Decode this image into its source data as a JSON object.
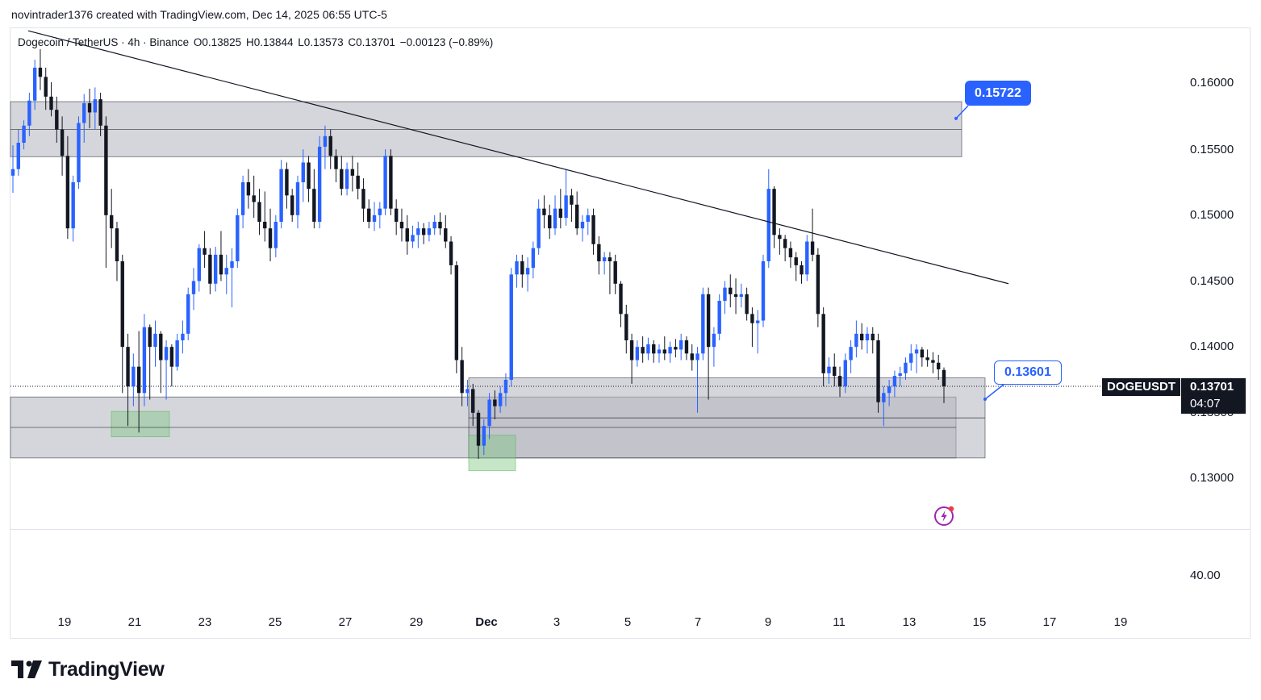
{
  "credit": "novintrader1376 created with TradingView.com, Dec 14, 2025 06:55 UTC-5",
  "legend": {
    "symbol": "Dogecoin / TetherUS · 4h · Binance",
    "open": "O0.13825",
    "high": "H0.13844",
    "low": "L0.13573",
    "close": "C0.13701",
    "change": "−0.00123 (−0.89%)"
  },
  "y_ticks": [
    "0.16000",
    "0.15500",
    "0.15000",
    "0.14500",
    "0.14000",
    "0.13500",
    "0.13000"
  ],
  "indicator_tick": "40.00",
  "x_ticks": [
    "19",
    "21",
    "23",
    "25",
    "27",
    "29",
    "Dec",
    "3",
    "5",
    "7",
    "9",
    "11",
    "13",
    "15",
    "17",
    "19"
  ],
  "callouts": {
    "upper": "0.15722",
    "lower": "0.13601"
  },
  "ticker": "DOGEUSDT",
  "last_price": "0.13701",
  "countdown": "04:07",
  "brand": "TradingView",
  "colors": {
    "up": "#2962ff",
    "down": "#131722",
    "zone": "#d1d4dc",
    "demand": "#a5d6a7"
  },
  "chart_data": {
    "type": "candlestick",
    "symbol": "DOGEUSDT",
    "interval": "4h",
    "exchange": "Binance",
    "ylim": [
      0.1265,
      0.1642
    ],
    "x_range_days": [
      "Nov 18",
      "Dec 20"
    ],
    "last_candle": {
      "open": 0.13825,
      "high": 0.13844,
      "low": 0.13573,
      "close": 0.13701
    },
    "key_levels": [
      0.15722,
      0.13601
    ],
    "zones": [
      {
        "name": "supply",
        "from": "Nov 18",
        "to": "Dec 14",
        "low": 0.15444,
        "high": 0.15862
      },
      {
        "name": "demand-left",
        "from": "Nov 18",
        "to": "Dec 15",
        "low": 0.13157,
        "high": 0.1362
      },
      {
        "name": "demand-right",
        "from": "Nov 30",
        "to": "Dec 15",
        "low": 0.13157,
        "high": 0.13765
      },
      {
        "name": "pivot-low-1",
        "from": "Nov 20",
        "to": "Nov 22",
        "low": 0.13318,
        "high": 0.1351
      },
      {
        "name": "pivot-low-2",
        "from": "Nov 30",
        "to": "Dec 1",
        "low": 0.1306,
        "high": 0.13329
      }
    ],
    "trendline": {
      "from": {
        "date": "Nov 18",
        "price": 0.164
      },
      "to": {
        "date": "Dec 16",
        "price": 0.1448
      }
    },
    "candles": [
      [
        0.153,
        0.1553,
        0.1517,
        0.1535
      ],
      [
        0.1535,
        0.1565,
        0.153,
        0.1555
      ],
      [
        0.1555,
        0.1572,
        0.155,
        0.1568
      ],
      [
        0.1568,
        0.1593,
        0.156,
        0.1587
      ],
      [
        0.1587,
        0.1618,
        0.158,
        0.1612
      ],
      [
        0.1612,
        0.1626,
        0.1595,
        0.1605
      ],
      [
        0.1605,
        0.1612,
        0.158,
        0.159
      ],
      [
        0.159,
        0.1601,
        0.1575,
        0.158
      ],
      [
        0.158,
        0.159,
        0.1555,
        0.1565
      ],
      [
        0.1565,
        0.1575,
        0.153,
        0.1545
      ],
      [
        0.1545,
        0.156,
        0.1482,
        0.149
      ],
      [
        0.149,
        0.153,
        0.148,
        0.1525
      ],
      [
        0.1525,
        0.1575,
        0.152,
        0.157
      ],
      [
        0.157,
        0.1592,
        0.1555,
        0.1585
      ],
      [
        0.1585,
        0.1596,
        0.1566,
        0.1578
      ],
      [
        0.1578,
        0.1597,
        0.1565,
        0.1588
      ],
      [
        0.1588,
        0.1593,
        0.156,
        0.1568
      ],
      [
        0.1568,
        0.1575,
        0.146,
        0.15
      ],
      [
        0.15,
        0.152,
        0.1475,
        0.149
      ],
      [
        0.149,
        0.1495,
        0.145,
        0.1465
      ],
      [
        0.1465,
        0.147,
        0.1365,
        0.14
      ],
      [
        0.14,
        0.141,
        0.134,
        0.137
      ],
      [
        0.137,
        0.1395,
        0.1355,
        0.1385
      ],
      [
        0.1385,
        0.1412,
        0.1335,
        0.1365
      ],
      [
        0.1365,
        0.1425,
        0.1355,
        0.1415
      ],
      [
        0.1415,
        0.1417,
        0.136,
        0.14
      ],
      [
        0.14,
        0.142,
        0.1385,
        0.141
      ],
      [
        0.141,
        0.1412,
        0.1365,
        0.139
      ],
      [
        0.139,
        0.1405,
        0.136,
        0.14
      ],
      [
        0.14,
        0.1402,
        0.137,
        0.1385
      ],
      [
        0.1385,
        0.141,
        0.1382,
        0.1405
      ],
      [
        0.1405,
        0.142,
        0.1395,
        0.141
      ],
      [
        0.141,
        0.1445,
        0.1405,
        0.144
      ],
      [
        0.144,
        0.146,
        0.1428,
        0.145
      ],
      [
        0.145,
        0.1478,
        0.1442,
        0.1475
      ],
      [
        0.1475,
        0.1488,
        0.146,
        0.147
      ],
      [
        0.147,
        0.1475,
        0.144,
        0.1448
      ],
      [
        0.1448,
        0.1476,
        0.1442,
        0.147
      ],
      [
        0.147,
        0.1488,
        0.145,
        0.1455
      ],
      [
        0.1455,
        0.147,
        0.144,
        0.146
      ],
      [
        0.146,
        0.1475,
        0.143,
        0.1465
      ],
      [
        0.1465,
        0.1505,
        0.146,
        0.15
      ],
      [
        0.15,
        0.153,
        0.149,
        0.1525
      ],
      [
        0.1525,
        0.1535,
        0.1505,
        0.1515
      ],
      [
        0.1515,
        0.153,
        0.1498,
        0.151
      ],
      [
        0.151,
        0.152,
        0.1485,
        0.1495
      ],
      [
        0.1495,
        0.1518,
        0.148,
        0.149
      ],
      [
        0.149,
        0.1505,
        0.1465,
        0.1475
      ],
      [
        0.1475,
        0.15,
        0.1468,
        0.1495
      ],
      [
        0.1495,
        0.1542,
        0.149,
        0.1535
      ],
      [
        0.1535,
        0.154,
        0.1505,
        0.1515
      ],
      [
        0.1515,
        0.152,
        0.1495,
        0.15
      ],
      [
        0.15,
        0.153,
        0.149,
        0.1525
      ],
      [
        0.1525,
        0.155,
        0.151,
        0.154
      ],
      [
        0.154,
        0.1545,
        0.151,
        0.152
      ],
      [
        0.152,
        0.1535,
        0.149,
        0.1495
      ],
      [
        0.1495,
        0.156,
        0.149,
        0.1552
      ],
      [
        0.1552,
        0.1568,
        0.1535,
        0.156
      ],
      [
        0.156,
        0.1565,
        0.1535,
        0.1545
      ],
      [
        0.1545,
        0.155,
        0.1525,
        0.1535
      ],
      [
        0.1535,
        0.1545,
        0.1515,
        0.152
      ],
      [
        0.152,
        0.154,
        0.1515,
        0.1535
      ],
      [
        0.1535,
        0.1545,
        0.1518,
        0.153
      ],
      [
        0.153,
        0.154,
        0.1512,
        0.152
      ],
      [
        0.152,
        0.1528,
        0.1495,
        0.1505
      ],
      [
        0.1505,
        0.1512,
        0.149,
        0.1495
      ],
      [
        0.1495,
        0.151,
        0.1488,
        0.15
      ],
      [
        0.15,
        0.151,
        0.149,
        0.1505
      ],
      [
        0.1505,
        0.155,
        0.15,
        0.1545
      ],
      [
        0.1545,
        0.155,
        0.15,
        0.1505
      ],
      [
        0.1505,
        0.1512,
        0.1485,
        0.1495
      ],
      [
        0.1495,
        0.1505,
        0.148,
        0.149
      ],
      [
        0.149,
        0.15,
        0.147,
        0.148
      ],
      [
        0.148,
        0.1492,
        0.1475,
        0.1485
      ],
      [
        0.1485,
        0.1495,
        0.1475,
        0.149
      ],
      [
        0.149,
        0.1494,
        0.1478,
        0.1485
      ],
      [
        0.1485,
        0.1495,
        0.148,
        0.149
      ],
      [
        0.149,
        0.15,
        0.1485,
        0.1495
      ],
      [
        0.1495,
        0.1502,
        0.1485,
        0.149
      ],
      [
        0.149,
        0.15,
        0.1475,
        0.148
      ],
      [
        0.148,
        0.1484,
        0.1455,
        0.1462
      ],
      [
        0.1462,
        0.1465,
        0.138,
        0.139
      ],
      [
        0.139,
        0.14,
        0.1355,
        0.1365
      ],
      [
        0.1365,
        0.1375,
        0.1355,
        0.1368
      ],
      [
        0.1368,
        0.1372,
        0.134,
        0.135
      ],
      [
        0.135,
        0.1352,
        0.1315,
        0.1325
      ],
      [
        0.1325,
        0.1345,
        0.1318,
        0.134
      ],
      [
        0.134,
        0.1365,
        0.133,
        0.136
      ],
      [
        0.136,
        0.1367,
        0.1345,
        0.1355
      ],
      [
        0.1355,
        0.137,
        0.135,
        0.1365
      ],
      [
        0.1365,
        0.138,
        0.1355,
        0.1375
      ],
      [
        0.1375,
        0.146,
        0.137,
        0.1455
      ],
      [
        0.1455,
        0.147,
        0.1445,
        0.1465
      ],
      [
        0.1465,
        0.147,
        0.1445,
        0.1455
      ],
      [
        0.1455,
        0.1468,
        0.1442,
        0.146
      ],
      [
        0.146,
        0.148,
        0.1452,
        0.1475
      ],
      [
        0.1475,
        0.1512,
        0.147,
        0.1505
      ],
      [
        0.1505,
        0.1515,
        0.149,
        0.15
      ],
      [
        0.15,
        0.1508,
        0.1482,
        0.149
      ],
      [
        0.149,
        0.1515,
        0.1485,
        0.1505
      ],
      [
        0.1505,
        0.152,
        0.149,
        0.1498
      ],
      [
        0.1498,
        0.1535,
        0.1492,
        0.1515
      ],
      [
        0.1515,
        0.152,
        0.1495,
        0.1508
      ],
      [
        0.1508,
        0.1518,
        0.1485,
        0.149
      ],
      [
        0.149,
        0.15,
        0.148,
        0.1495
      ],
      [
        0.1495,
        0.1505,
        0.1485,
        0.15
      ],
      [
        0.15,
        0.1505,
        0.147,
        0.1478
      ],
      [
        0.1478,
        0.1484,
        0.1455,
        0.1465
      ],
      [
        0.1465,
        0.1472,
        0.1455,
        0.1468
      ],
      [
        0.1468,
        0.1472,
        0.144,
        0.1465
      ],
      [
        0.1465,
        0.147,
        0.144,
        0.1448
      ],
      [
        0.1448,
        0.145,
        0.1415,
        0.1425
      ],
      [
        0.1425,
        0.1432,
        0.1395,
        0.1405
      ],
      [
        0.1405,
        0.141,
        0.1372,
        0.139
      ],
      [
        0.139,
        0.1405,
        0.1385,
        0.14
      ],
      [
        0.14,
        0.1408,
        0.1388,
        0.1395
      ],
      [
        0.1395,
        0.1407,
        0.139,
        0.1402
      ],
      [
        0.1402,
        0.1405,
        0.1388,
        0.1395
      ],
      [
        0.1395,
        0.1402,
        0.1388,
        0.1398
      ],
      [
        0.1398,
        0.1408,
        0.139,
        0.1395
      ],
      [
        0.1395,
        0.1404,
        0.1388,
        0.14
      ],
      [
        0.14,
        0.1406,
        0.1392,
        0.1398
      ],
      [
        0.1398,
        0.141,
        0.139,
        0.1405
      ],
      [
        0.1405,
        0.1408,
        0.139,
        0.1395
      ],
      [
        0.1395,
        0.1402,
        0.1382,
        0.139
      ],
      [
        0.139,
        0.14,
        0.135,
        0.1395
      ],
      [
        0.1395,
        0.1445,
        0.139,
        0.144
      ],
      [
        0.144,
        0.1445,
        0.136,
        0.14
      ],
      [
        0.14,
        0.1415,
        0.1385,
        0.141
      ],
      [
        0.141,
        0.144,
        0.1405,
        0.1435
      ],
      [
        0.1435,
        0.145,
        0.1425,
        0.1445
      ],
      [
        0.1445,
        0.1455,
        0.143,
        0.144
      ],
      [
        0.144,
        0.1452,
        0.1425,
        0.1438
      ],
      [
        0.1438,
        0.1448,
        0.143,
        0.144
      ],
      [
        0.144,
        0.1445,
        0.142,
        0.1425
      ],
      [
        0.1425,
        0.143,
        0.14,
        0.1418
      ],
      [
        0.1418,
        0.1428,
        0.1395,
        0.142
      ],
      [
        0.142,
        0.147,
        0.1415,
        0.1465
      ],
      [
        0.1465,
        0.1535,
        0.146,
        0.152
      ],
      [
        0.152,
        0.1522,
        0.1475,
        0.1485
      ],
      [
        0.1485,
        0.149,
        0.147,
        0.1482
      ],
      [
        0.1482,
        0.1485,
        0.1465,
        0.1475
      ],
      [
        0.1475,
        0.148,
        0.146,
        0.1468
      ],
      [
        0.1468,
        0.1472,
        0.145,
        0.1462
      ],
      [
        0.1462,
        0.1465,
        0.1448,
        0.1455
      ],
      [
        0.1455,
        0.1485,
        0.145,
        0.148
      ],
      [
        0.148,
        0.1505,
        0.1465,
        0.147
      ],
      [
        0.147,
        0.1475,
        0.1415,
        0.1425
      ],
      [
        0.1425,
        0.143,
        0.137,
        0.138
      ],
      [
        0.138,
        0.1392,
        0.1372,
        0.1385
      ],
      [
        0.1385,
        0.1395,
        0.137,
        0.1378
      ],
      [
        0.1378,
        0.1385,
        0.1362,
        0.137
      ],
      [
        0.137,
        0.1395,
        0.1365,
        0.139
      ],
      [
        0.139,
        0.1405,
        0.138,
        0.14
      ],
      [
        0.14,
        0.142,
        0.1392,
        0.141
      ],
      [
        0.141,
        0.1418,
        0.1398,
        0.1405
      ],
      [
        0.1405,
        0.1415,
        0.1395,
        0.141
      ],
      [
        0.141,
        0.1415,
        0.1395,
        0.1405
      ],
      [
        0.1405,
        0.141,
        0.135,
        0.1358
      ],
      [
        0.1358,
        0.137,
        0.134,
        0.1365
      ],
      [
        0.1365,
        0.1375,
        0.1355,
        0.137
      ],
      [
        0.137,
        0.1382,
        0.1362,
        0.1378
      ],
      [
        0.1378,
        0.1385,
        0.137,
        0.138
      ],
      [
        0.138,
        0.1392,
        0.1375,
        0.1388
      ],
      [
        0.1388,
        0.1402,
        0.1382,
        0.1395
      ],
      [
        0.1395,
        0.1402,
        0.138,
        0.1398
      ],
      [
        0.1398,
        0.14,
        0.1385,
        0.1392
      ],
      [
        0.1392,
        0.1398,
        0.1385,
        0.139
      ],
      [
        0.139,
        0.1396,
        0.138,
        0.1388
      ],
      [
        0.1388,
        0.1394,
        0.1375,
        0.1383
      ],
      [
        0.13825,
        0.13844,
        0.13573,
        0.13701
      ]
    ]
  }
}
